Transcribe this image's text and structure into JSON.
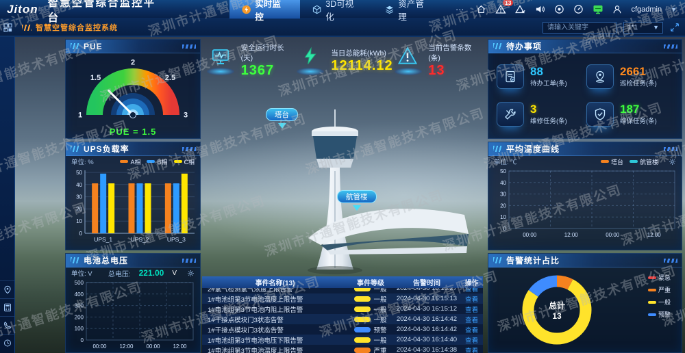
{
  "header": {
    "logo": "Jiton",
    "title": "智慧空管综合监控平台",
    "nav": [
      {
        "label": "实时监控",
        "active": true
      },
      {
        "label": "3D可视化",
        "active": false
      },
      {
        "label": "资产管理",
        "active": false
      },
      {
        "label": "···",
        "active": false
      }
    ],
    "alarm_badge": "13",
    "username": "cfgadmin",
    "icons": [
      "home-icon",
      "alarm-badge-icon",
      "alarm-check-icon",
      "speaker-icon",
      "record-icon",
      "dashboard-icon",
      "monitor-green-icon",
      "user-icon"
    ]
  },
  "subheader": {
    "breadcrumb": "智慧空管综合监控系统",
    "search_placeholder": "请输入关键字",
    "layout_select": "1*1"
  },
  "sidebar": {
    "top_icon": "layout-toggle-icon",
    "bottom_icons": [
      "location-icon",
      "calculator-icon",
      "phone-icon",
      "clock-icon"
    ]
  },
  "stats": [
    {
      "label": "安全运行时长(天)",
      "value": "1367",
      "color": "#3dff3d",
      "icon": "monitor-pulse-icon"
    },
    {
      "label": "当日总能耗(kWh)",
      "value": "12114.12",
      "color": "#ffe600",
      "icon": "lightning-icon"
    },
    {
      "label": "当前告警条数(条)",
      "value": "13",
      "color": "#ff2b2b",
      "icon": "alert-triangle-icon"
    }
  ],
  "scene": {
    "labels": [
      "塔台",
      "航管楼"
    ]
  },
  "todo": {
    "title": "待办事项",
    "items": [
      {
        "value": "88",
        "label": "待办工单(条)",
        "color": "#2ec7ff",
        "icon": "work-order-icon"
      },
      {
        "value": "2661",
        "label": "巡检任务(条)",
        "color": "#ff8a1e",
        "icon": "patrol-icon"
      },
      {
        "value": "3",
        "label": "维修任务(条)",
        "color": "#ffe600",
        "icon": "repair-icon"
      },
      {
        "value": "187",
        "label": "维保任务(条)",
        "color": "#3dff3d",
        "icon": "maintenance-icon"
      }
    ]
  },
  "chart_data": [
    {
      "id": "pue_gauge",
      "type": "gauge",
      "title": "PUE",
      "min": 1,
      "max": 3,
      "value": 1.5,
      "ticks": [
        1,
        1.5,
        2,
        2.5,
        3
      ],
      "label": "PUE = 1.5"
    },
    {
      "id": "ups_load",
      "type": "bar",
      "title": "UPS负载率",
      "unit": "单位: %",
      "categories": [
        "UPS_1",
        "UPS_2",
        "UPS_3"
      ],
      "series": [
        {
          "name": "A相",
          "color": "#f5821f",
          "values": [
            41,
            41,
            41
          ]
        },
        {
          "name": "B相",
          "color": "#2e9bff",
          "values": [
            49,
            41,
            41
          ]
        },
        {
          "name": "C相",
          "color": "#ffe600",
          "values": [
            41,
            41,
            49
          ]
        }
      ],
      "ylim": [
        0,
        50
      ],
      "yticks": [
        0,
        10,
        20,
        30,
        40,
        50
      ],
      "legend_position": "top"
    },
    {
      "id": "battery_voltage",
      "type": "line",
      "title": "电池总电压",
      "unit": "单位: V",
      "value_label": "总电压:",
      "value": "221.00",
      "value_unit": "V",
      "x_ticks": [
        "00:00",
        "12:00",
        "00:00",
        "12:00"
      ],
      "ylim": [
        0,
        500
      ],
      "yticks": [
        0,
        100,
        200,
        300,
        400,
        500
      ],
      "series": [],
      "grid": "dashed"
    },
    {
      "id": "avg_temp",
      "type": "line",
      "title": "平均温度曲线",
      "unit": "单位: ℃",
      "x_ticks": [
        "00:00",
        "12:00",
        "00:00",
        "12:00"
      ],
      "ylim": [
        0,
        50
      ],
      "yticks": [
        0,
        10,
        20,
        30,
        40,
        50
      ],
      "legend": [
        {
          "name": "塔台",
          "color": "#f5821f"
        },
        {
          "name": "航管楼",
          "color": "#2ec7d8"
        }
      ],
      "series": [],
      "grid": "dashed"
    },
    {
      "id": "alarm_donut",
      "type": "pie",
      "title": "告警统计占比",
      "center_label": "总计",
      "total": "13",
      "slices": [
        {
          "name": "紧急",
          "color": "#e83f3f",
          "value": 0
        },
        {
          "name": "严重",
          "color": "#f5821f",
          "value": 1
        },
        {
          "name": "一般",
          "color": "#ffe32b",
          "value": 10
        },
        {
          "name": "预警",
          "color": "#3f8cff",
          "value": 2
        }
      ],
      "legend_position": "right"
    }
  ],
  "table": {
    "headers": [
      "事件名称(13)",
      "事件等级",
      "告警时间",
      "操作"
    ],
    "rows": [
      {
        "name": "2#氢气检测氢气浓度上限告警",
        "level": "一般",
        "level_color": "#ffe32b",
        "time": "2024-04-30 16:15:27",
        "action": "查看"
      },
      {
        "name": "1#电池组第3节电池温度上限告警",
        "level": "一般",
        "level_color": "#ffe32b",
        "time": "2024-04-30 16:15:13",
        "action": "查看"
      },
      {
        "name": "1#电池组第3节电池内阻上限告警",
        "level": "一般",
        "level_color": "#ffe32b",
        "time": "2024-04-30 16:15:12",
        "action": "查看"
      },
      {
        "name": "1#干接点模块门3状态告警",
        "level": "一般",
        "level_color": "#ffe32b",
        "time": "2024-04-30 16:14:42",
        "action": "查看"
      },
      {
        "name": "1#干接点模块门3状态告警",
        "level": "预警",
        "level_color": "#3f8cff",
        "time": "2024-04-30 16:14:42",
        "action": "查看"
      },
      {
        "name": "1#电池组第3节电池电压下限告警",
        "level": "一般",
        "level_color": "#ffe32b",
        "time": "2024-04-30 16:14:40",
        "action": "查看"
      },
      {
        "name": "1#电池组第3节电池温度上限告警",
        "level": "严重",
        "level_color": "#f5821f",
        "time": "2024-04-30 16:14:38",
        "action": "查看"
      }
    ]
  },
  "watermark": "深圳市计通智能技术有限公司"
}
